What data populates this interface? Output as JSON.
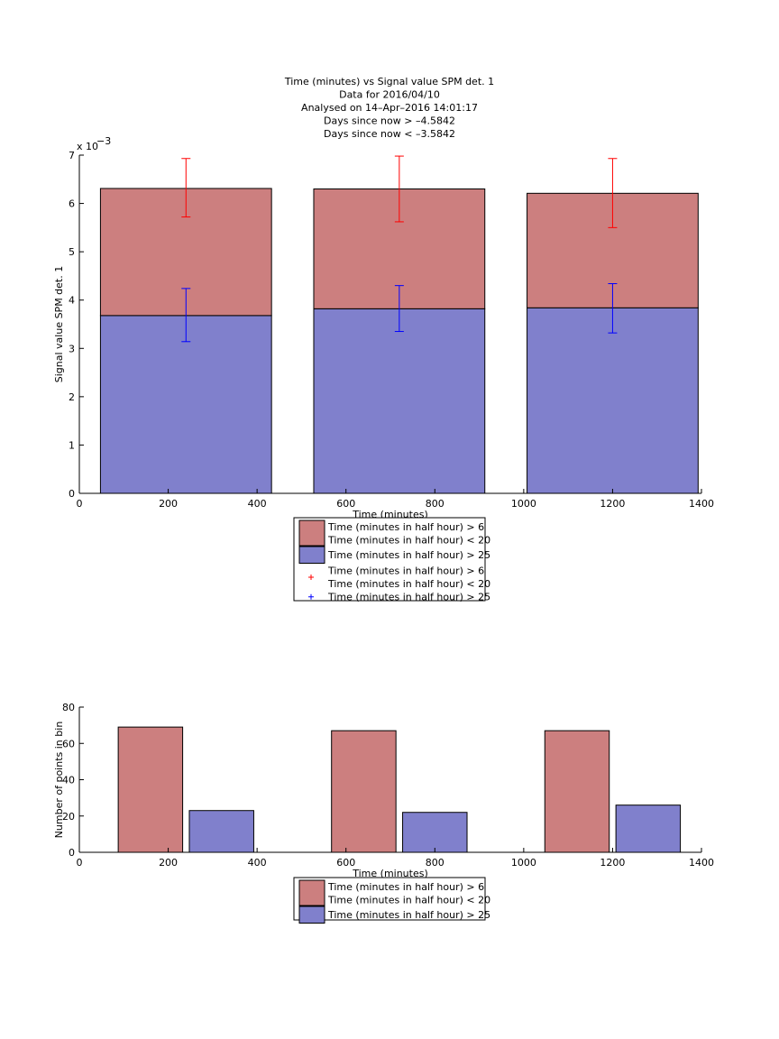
{
  "figure": {
    "title_lines": [
      "Time (minutes) vs Signal value SPM det. 1",
      "Data for 2016/04/10",
      "Analysed on 14–Apr–2016 14:01:17",
      "Days since now > –4.5842",
      "Days since now < –3.5842"
    ]
  },
  "chart_data": [
    {
      "type": "bar",
      "stacked": true,
      "xlabel": "Time (minutes)",
      "ylabel": "Signal value SPM det. 1",
      "xlim": [
        0,
        1400
      ],
      "ylim": [
        0,
        7
      ],
      "x_ticks": [
        0,
        200,
        400,
        600,
        800,
        1000,
        1200,
        1400
      ],
      "y_ticks": [
        0,
        1,
        2,
        3,
        4,
        5,
        6,
        7
      ],
      "y_tick_labels": [
        "0",
        "1",
        "2",
        "3",
        "4",
        "5",
        "6",
        "7"
      ],
      "y_exponent_label": "x 10",
      "y_exponent": "−3",
      "bar_centers": [
        240,
        720,
        1200
      ],
      "bar_width": 385,
      "series": [
        {
          "name": "Time (minutes in half hour) > 25",
          "color": "#8080cc",
          "values": [
            3.68,
            3.82,
            3.84
          ],
          "error_low": [
            3.14,
            3.35,
            3.32
          ],
          "error_high": [
            4.24,
            4.3,
            4.34
          ],
          "error_color": "#0000ff"
        },
        {
          "name": "Time (minutes in half hour) > 6\nTime (minutes in half hour) < 20",
          "color": "#cc7f7f",
          "values": [
            2.63,
            2.48,
            2.37
          ],
          "error_low": [
            5.72,
            5.62,
            5.5
          ],
          "error_high": [
            6.93,
            6.98,
            6.93
          ],
          "error_color": "#ff0000"
        }
      ],
      "legend": {
        "placement": "below-axes",
        "entries": [
          {
            "kind": "patch",
            "color": "#cc7f7f",
            "lines": [
              "Time (minutes in half hour) > 6",
              "Time (minutes in half hour) < 20"
            ]
          },
          {
            "kind": "patch",
            "color": "#8080cc",
            "lines": [
              "Time (minutes in half hour) > 25"
            ]
          },
          {
            "kind": "marker",
            "color": "#ff0000",
            "lines": [
              "Time (minutes in half hour) > 6",
              "Time (minutes in half hour) < 20"
            ]
          },
          {
            "kind": "marker",
            "color": "#0000ff",
            "lines": [
              "Time (minutes in half hour) > 25"
            ]
          }
        ]
      }
    },
    {
      "type": "bar",
      "grouped": true,
      "xlabel": "Time (minutes)",
      "ylabel": "Number of points in bin",
      "xlim": [
        0,
        1400
      ],
      "ylim": [
        0,
        80
      ],
      "x_ticks": [
        0,
        200,
        400,
        600,
        800,
        1000,
        1200,
        1400
      ],
      "y_ticks": [
        0,
        20,
        40,
        60,
        80
      ],
      "y_tick_labels": [
        "0",
        "20",
        "40",
        "60",
        "80"
      ],
      "group_centers": [
        240,
        720,
        1200
      ],
      "bar_offset": 80,
      "bar_width": 145,
      "series": [
        {
          "name": "Time (minutes in half hour) > 6\nTime (minutes in half hour) < 20",
          "color": "#cc7f7f",
          "values": [
            69,
            67,
            67
          ]
        },
        {
          "name": "Time (minutes in half hour) > 25",
          "color": "#8080cc",
          "values": [
            23,
            22,
            26
          ]
        }
      ],
      "legend": {
        "placement": "below-axes",
        "entries": [
          {
            "kind": "patch",
            "color": "#cc7f7f",
            "lines": [
              "Time (minutes in half hour) > 6",
              "Time (minutes in half hour) < 20"
            ]
          },
          {
            "kind": "patch",
            "color": "#8080cc",
            "lines": [
              "Time (minutes in half hour) > 25"
            ]
          }
        ]
      }
    }
  ]
}
